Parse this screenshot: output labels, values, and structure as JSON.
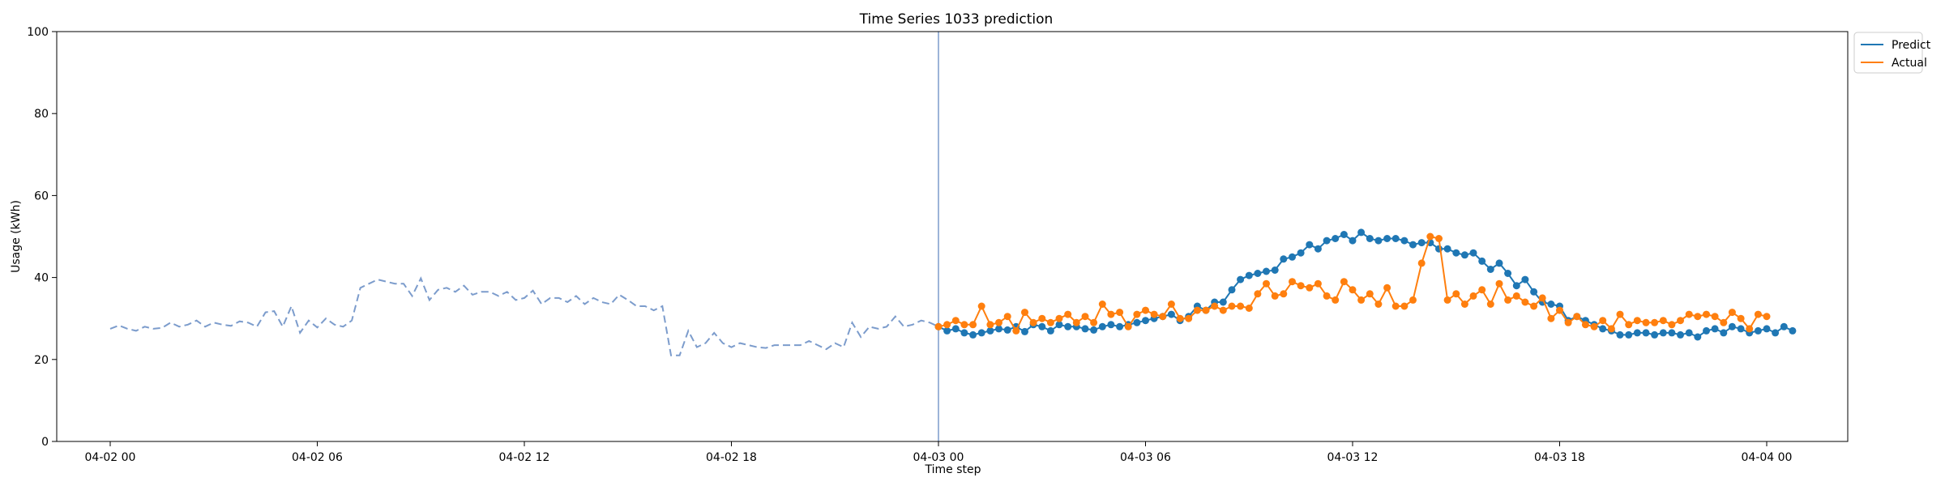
{
  "chart_data": {
    "type": "line",
    "title": "Time Series 1033 prediction",
    "xlabel": "Time step",
    "ylabel": "Usage (kWh)",
    "ylim": [
      0,
      100
    ],
    "yticks": [
      0,
      20,
      40,
      60,
      80,
      100
    ],
    "xticks": [
      "04-02 00",
      "04-02 06",
      "04-02 12",
      "04-02 18",
      "04-03 00",
      "04-03 06",
      "04-03 12",
      "04-03 18",
      "04-04 00"
    ],
    "x_step": "15 min",
    "grid": false,
    "legend": {
      "placement": "top-right outside",
      "entries": [
        "Predict",
        "Actual"
      ]
    },
    "forecast_start": "04-03 00",
    "colors": {
      "predict": "#1f77b4",
      "actual": "#ff7f0e",
      "history": "#7c9ccc",
      "divider": "#7c9ccc"
    },
    "series": [
      {
        "role": "history",
        "start": "04-02 00",
        "values": [
          27.5,
          28.3,
          27.5,
          27.0,
          28.0,
          27.5,
          27.7,
          29.0,
          28.0,
          28.5,
          29.5,
          28.0,
          29.0,
          28.5,
          28.2,
          29.3,
          29.0,
          28.0,
          31.5,
          31.8,
          28.0,
          33.0,
          26.5,
          29.5,
          27.8,
          30.0,
          28.5,
          28.0,
          29.5,
          37.5,
          38.5,
          39.5,
          39.0,
          38.5,
          38.5,
          35.5,
          39.8,
          34.5,
          37.0,
          37.5,
          36.5,
          38.0,
          35.8,
          36.5,
          36.5,
          35.5,
          36.5,
          34.5,
          35.0,
          36.8,
          33.5,
          35.0,
          35.0,
          34.0,
          35.5,
          33.5,
          35.0,
          34.0,
          33.5,
          35.8,
          34.5,
          33.0,
          33.0,
          32.0,
          33.0,
          21.0,
          21.0,
          27.0,
          23.0,
          24.0,
          26.5,
          24.0,
          23.0,
          24.0,
          23.5,
          23.0,
          22.8,
          23.5,
          23.5,
          23.5,
          23.5,
          24.5,
          23.5,
          22.5,
          24.0,
          23.0,
          29.0,
          25.5,
          28.0,
          27.5,
          28.0,
          30.5,
          28.0,
          28.5,
          29.5,
          29.0,
          28.0
        ]
      },
      {
        "name": "Predict",
        "start": "04-03 00",
        "values": [
          28.0,
          27.0,
          27.5,
          26.5,
          26.0,
          26.5,
          27.0,
          27.5,
          27.2,
          28.0,
          26.8,
          28.5,
          28.0,
          27.0,
          28.5,
          28.0,
          28.0,
          27.5,
          27.2,
          28.0,
          28.5,
          28.0,
          28.5,
          29.0,
          29.5,
          30.0,
          30.5,
          31.0,
          29.5,
          30.5,
          33.0,
          32.0,
          34.0,
          34.0,
          37.0,
          39.5,
          40.5,
          41.0,
          41.5,
          41.8,
          44.5,
          45.0,
          46.0,
          48.0,
          47.0,
          49.0,
          49.5,
          50.5,
          49.0,
          51.0,
          49.5,
          49.0,
          49.5,
          49.5,
          49.0,
          48.0,
          48.5,
          48.5,
          47.0,
          47.0,
          46.0,
          45.5,
          46.0,
          44.0,
          42.0,
          43.5,
          41.0,
          38.0,
          39.5,
          36.5,
          34.0,
          33.5,
          33.0,
          29.5,
          30.5,
          29.5,
          28.5,
          27.5,
          27.0,
          26.0,
          26.0,
          26.5,
          26.5,
          26.0,
          26.5,
          26.5,
          26.0,
          26.5,
          25.5,
          27.0,
          27.5,
          26.5,
          28.0,
          27.5,
          26.5,
          27.0,
          27.5,
          26.5,
          28.0,
          27.0
        ]
      },
      {
        "name": "Actual",
        "start": "04-03 00",
        "values": [
          28.0,
          28.5,
          29.5,
          28.5,
          28.5,
          33.0,
          28.5,
          29.0,
          30.5,
          27.0,
          31.5,
          29.0,
          30.0,
          29.0,
          30.0,
          31.0,
          29.0,
          30.5,
          29.0,
          33.5,
          31.0,
          31.5,
          28.0,
          31.0,
          32.0,
          31.0,
          30.5,
          33.5,
          30.0,
          30.0,
          32.0,
          32.0,
          33.0,
          32.0,
          33.0,
          33.0,
          32.5,
          36.0,
          38.5,
          35.5,
          36.0,
          39.0,
          38.0,
          37.5,
          38.5,
          35.5,
          34.5,
          39.0,
          37.0,
          34.5,
          36.0,
          33.5,
          37.5,
          33.0,
          33.0,
          34.5,
          43.5,
          50.0,
          49.5,
          34.5,
          36.0,
          33.5,
          35.5,
          37.0,
          33.5,
          38.5,
          34.5,
          35.5,
          34.0,
          33.0,
          35.0,
          30.0,
          32.0,
          29.0,
          30.5,
          28.5,
          28.0,
          29.5,
          27.5,
          31.0,
          28.5,
          29.5,
          29.0,
          29.0,
          29.5,
          28.5,
          29.5,
          31.0,
          30.5,
          31.0,
          30.5,
          29.0,
          31.5,
          30.0,
          27.5,
          31.0,
          30.5
        ]
      }
    ]
  }
}
